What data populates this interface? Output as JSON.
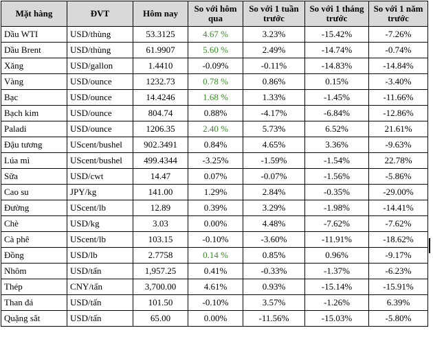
{
  "columns": [
    "Mặt hàng",
    "ĐVT",
    "Hôm nay",
    "So với hôm qua",
    "So với 1 tuần trước",
    "So với 1 tháng trước",
    "So với 1 năm trước"
  ],
  "positive_color": "#3a8a2a",
  "rows": [
    {
      "name": "Dầu WTI",
      "unit": "USD/thùng",
      "today": "53.3125",
      "day": "4.67 %",
      "week": "3.23%",
      "month": "-15.42%",
      "year": "-7.26%",
      "day_green": true
    },
    {
      "name": "Dầu Brent",
      "unit": "USD/thùng",
      "today": "61.9907",
      "day": "5.60 %",
      "week": "2.49%",
      "month": "-14.74%",
      "year": "-0.74%",
      "day_green": true
    },
    {
      "name": "Xăng",
      "unit": "USD/gallon",
      "today": "1.4410",
      "day": "-0.09%",
      "week": "-0.11%",
      "month": "-14.83%",
      "year": "-14.84%",
      "day_green": false
    },
    {
      "name": "Vàng",
      "unit": "USD/ounce",
      "today": "1232.73",
      "day": "0.78 %",
      "week": "0.86%",
      "month": "0.15%",
      "year": "-3.40%",
      "day_green": true
    },
    {
      "name": "Bạc",
      "unit": "USD/ounce",
      "today": "14.4246",
      "day": "1.68 %",
      "week": "1.33%",
      "month": "-1.45%",
      "year": "-11.66%",
      "day_green": true
    },
    {
      "name": "Bạch kim",
      "unit": "USD/ounce",
      "today": "804.74",
      "day": "0.88%",
      "week": "-4.17%",
      "month": "-6.84%",
      "year": "-12.86%",
      "day_green": false
    },
    {
      "name": "Paladi",
      "unit": "USD/ounce",
      "today": "1206.35",
      "day": "2.40 %",
      "week": "5.73%",
      "month": "6.52%",
      "year": "21.61%",
      "day_green": true
    },
    {
      "name": "Đậu tương",
      "unit": "UScent/bushel",
      "today": "902.3491",
      "day": "0.84%",
      "week": "4.65%",
      "month": "3.36%",
      "year": "-9.63%",
      "day_green": false
    },
    {
      "name": "Lúa mì",
      "unit": "UScent/bushel",
      "today": "499.4344",
      "day": "-3.25%",
      "week": "-1.59%",
      "month": "-1.54%",
      "year": "22.78%",
      "day_green": false
    },
    {
      "name": "Sữa",
      "unit": "USD/cwt",
      "today": "14.47",
      "day": "0.07%",
      "week": "-0.07%",
      "month": "-1.56%",
      "year": "-5.86%",
      "day_green": false
    },
    {
      "name": "Cao su",
      "unit": "JPY/kg",
      "today": "141.00",
      "day": "1.29%",
      "week": "2.84%",
      "month": "-0.35%",
      "year": "-29.00%",
      "day_green": false
    },
    {
      "name": "Đường",
      "unit": "UScent/lb",
      "today": "12.89",
      "day": "0.39%",
      "week": "3.29%",
      "month": "-1.98%",
      "year": "-14.41%",
      "day_green": false
    },
    {
      "name": "Chè",
      "unit": "USD/kg",
      "today": "3.03",
      "day": "0.00%",
      "week": "4.48%",
      "month": "-7.62%",
      "year": "-7.62%",
      "day_green": false
    },
    {
      "name": "Cà phê",
      "unit": "UScent/lb",
      "today": "103.15",
      "day": "-0.10%",
      "week": "-3.60%",
      "month": "-11.91%",
      "year": "-18.62%",
      "day_green": false
    },
    {
      "name": "Đồng",
      "unit": "USD/lb",
      "today": "2.7758",
      "day": "0.14 %",
      "week": "0.85%",
      "month": "0.96%",
      "year": "-9.17%",
      "day_green": true
    },
    {
      "name": "Nhôm",
      "unit": "USD/tấn",
      "today": "1,957.25",
      "day": "0.41%",
      "week": "-0.33%",
      "month": "-1.37%",
      "year": "-6.23%",
      "day_green": false
    },
    {
      "name": "Thép",
      "unit": "CNY/tấn",
      "today": "3,700.00",
      "day": "4.61%",
      "week": "0.93%",
      "month": "-15.14%",
      "year": "-15.91%",
      "day_green": false
    },
    {
      "name": "Than đá",
      "unit": "USD/tấn",
      "today": "101.50",
      "day": "-0.10%",
      "week": "3.57%",
      "month": "-1.26%",
      "year": "6.39%",
      "day_green": false
    },
    {
      "name": "Quặng sắt",
      "unit": "USD/tấn",
      "today": "65.00",
      "day": "0.00%",
      "week": "-11.56%",
      "month": "-15.03%",
      "year": "-5.80%",
      "day_green": false
    }
  ]
}
